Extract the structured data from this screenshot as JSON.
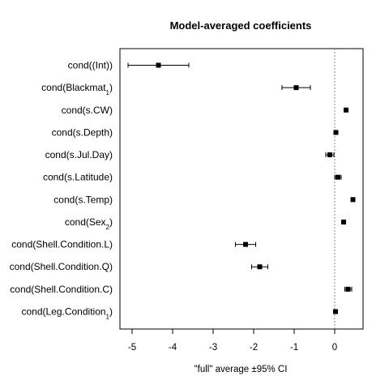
{
  "chart_data": {
    "type": "dotplot",
    "title": "Model-averaged coefficients",
    "xlabel": "\"full\" average ±95% CI",
    "ylabel": "",
    "xlim": [
      -5.3,
      0.7
    ],
    "xticks": [
      "-5",
      "-4",
      "-3",
      "-2",
      "-1",
      "0"
    ],
    "reference_line": 0,
    "point_color": "#000000",
    "grid": false,
    "coefficients": [
      {
        "label": "cond((Int))",
        "estimate": -4.35,
        "lower": -5.1,
        "upper": -3.6
      },
      {
        "label": "cond(Blackmat1)",
        "estimate": -0.95,
        "lower": -1.3,
        "upper": -0.6
      },
      {
        "label": "cond(s.CW)",
        "estimate": 0.28,
        "lower": 0.28,
        "upper": 0.28
      },
      {
        "label": "cond(s.Depth)",
        "estimate": 0.03,
        "lower": 0.03,
        "upper": 0.03
      },
      {
        "label": "cond(s.Jul.Day)",
        "estimate": -0.12,
        "lower": -0.22,
        "upper": -0.02
      },
      {
        "label": "cond(s.Latitude)",
        "estimate": 0.08,
        "lower": 0.0,
        "upper": 0.16
      },
      {
        "label": "cond(s.Temp)",
        "estimate": 0.45,
        "lower": 0.4,
        "upper": 0.5
      },
      {
        "label": "cond(Sex2)",
        "estimate": 0.22,
        "lower": 0.22,
        "upper": 0.22
      },
      {
        "label": "cond(Shell.Condition.L)",
        "estimate": -2.2,
        "lower": -2.45,
        "upper": -1.95
      },
      {
        "label": "cond(Shell.Condition.Q)",
        "estimate": -1.85,
        "lower": -2.05,
        "upper": -1.65
      },
      {
        "label": "cond(Shell.Condition.C)",
        "estimate": 0.33,
        "lower": 0.25,
        "upper": 0.42
      },
      {
        "label": "cond(Leg.Condition1)",
        "estimate": 0.02,
        "lower": 0.0,
        "upper": 0.05
      }
    ]
  }
}
